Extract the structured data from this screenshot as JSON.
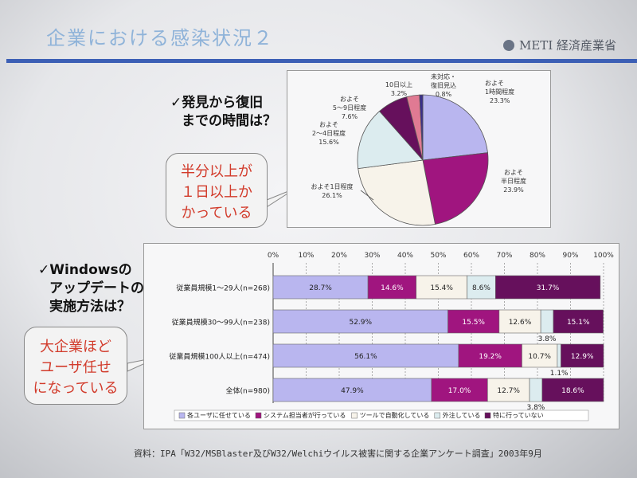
{
  "slide": {
    "title": "企業における感染状況２",
    "logo_text": "METI 経済産業省",
    "q1": [
      "✓発見から復旧",
      "までの時間は？"
    ],
    "callout1": [
      "半分以上が",
      "１日以上か",
      "かっている"
    ],
    "q2": [
      "✓Windowsの",
      "アップデートの",
      "実施方法は？"
    ],
    "callout2": [
      "大企業ほど",
      "ユーザ任せ",
      "になっている"
    ],
    "source": "資料：IPA「W32/MSBlaster及びW32/Welchiウイルス被害に関する企業アンケート調査」2003年9月"
  },
  "chart_data": [
    {
      "type": "pie",
      "slices": [
        {
          "label": [
            "およそ",
            "1時間程度"
          ],
          "value_text": "23.3%",
          "value": 23.3,
          "color": "#b9b6ef"
        },
        {
          "label": [
            "およそ",
            "半日程度"
          ],
          "value_text": "23.9%",
          "value": 23.9,
          "color": "#a0157f"
        },
        {
          "label": [
            "およそ1日程度"
          ],
          "value_text": "26.1%",
          "value": 26.1,
          "color": "#f7f3ea"
        },
        {
          "label": [
            "およそ",
            "2～4日程度"
          ],
          "value_text": "15.6%",
          "value": 15.6,
          "color": "#dcecef"
        },
        {
          "label": [
            "およそ",
            "5～9日程度"
          ],
          "value_text": "7.6%",
          "value": 7.6,
          "color": "#66105c"
        },
        {
          "label": [
            "10日以上"
          ],
          "value_text": "3.2%",
          "value": 3.2,
          "color": "#e07a93"
        },
        {
          "label": [
            "未対応・",
            "復旧見込"
          ],
          "value_text": "0.8%",
          "value": 0.8,
          "color": "#3b2f8c"
        }
      ]
    },
    {
      "type": "bar",
      "stacked": true,
      "orientation": "horizontal",
      "x_ticks": [
        "0%",
        "10%",
        "20%",
        "30%",
        "40%",
        "50%",
        "60%",
        "70%",
        "80%",
        "90%",
        "100%"
      ],
      "categories": [
        "従業員規模1～29人(n=268)",
        "従業員規模30～99人(n=238)",
        "従業員規模100人以上(n=474)",
        "全体(n=980)"
      ],
      "series": [
        {
          "name": "各ユーザに任せている",
          "color": "#b9b6ef",
          "values": [
            28.7,
            52.9,
            56.1,
            47.9
          ],
          "labels": [
            "28.7%",
            "52.9%",
            "56.1%",
            "47.9%"
          ]
        },
        {
          "name": "システム担当者が行っている",
          "color": "#a0157f",
          "values": [
            14.6,
            15.5,
            19.2,
            17.0
          ],
          "labels": [
            "14.6%",
            "15.5%",
            "19.2%",
            "17.0%"
          ]
        },
        {
          "name": "ツールで自動化している",
          "color": "#f7f3ea",
          "values": [
            15.4,
            12.6,
            10.7,
            12.7
          ],
          "labels": [
            "15.4%",
            "12.6%",
            "10.7%",
            "12.7%"
          ]
        },
        {
          "name": "外注している",
          "color": "#dcecef",
          "values": [
            8.6,
            3.8,
            1.1,
            3.8
          ],
          "labels": [
            "8.6%",
            "3.8%",
            "1.1%",
            "3.8%"
          ]
        },
        {
          "name": "特に行っていない",
          "color": "#66105c",
          "values": [
            31.7,
            15.1,
            12.9,
            18.6
          ],
          "labels": [
            "31.7%",
            "15.1%",
            "12.9%",
            "18.6%"
          ]
        }
      ]
    }
  ]
}
